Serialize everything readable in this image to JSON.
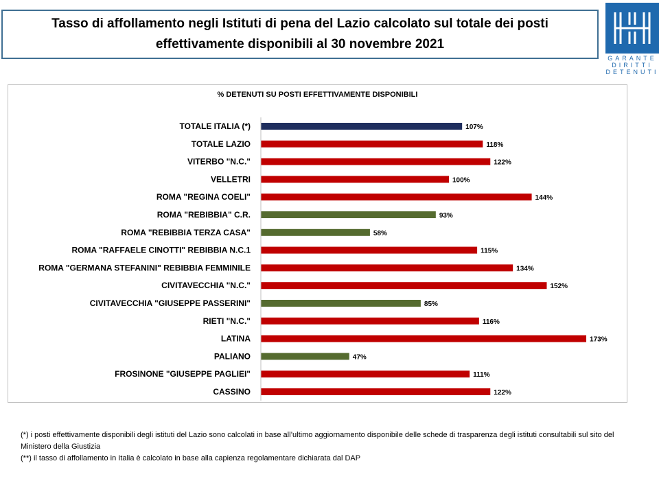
{
  "header": {
    "title": "Tasso di affollamento negli Istituti di pena del Lazio calcolato sul totale dei posti effettivamente disponibili al 30 novembre 2021"
  },
  "logo": {
    "lines": [
      "GARANTE",
      "DIRITTI",
      "DETENUTI"
    ],
    "color": "#1f69ae"
  },
  "chart_data": {
    "type": "bar",
    "orientation": "horizontal",
    "title": "% DETENUTI SU POSTI EFFETTIVAMENTE DISPONIBILI",
    "xlabel": "",
    "ylabel": "",
    "grid": false,
    "legend": "none",
    "xlim": [
      0,
      180
    ],
    "categories": [
      "TOTALE ITALIA (*)",
      "TOTALE LAZIO",
      "VITERBO \"N.C.\"",
      "VELLETRI",
      "ROMA \"REGINA COELI\"",
      "ROMA \"REBIBBIA\" C.R.",
      "ROMA \"REBIBBIA TERZA CASA\"",
      "ROMA \"RAFFAELE CINOTTI\" REBIBBIA N.C.1",
      "ROMA \"GERMANA STEFANINI\" REBIBBIA FEMMINILE",
      "CIVITAVECCHIA \"N.C.\"",
      "CIVITAVECCHIA \"GIUSEPPE PASSERINI\"",
      "RIETI \"N.C.\"",
      "LATINA",
      "PALIANO",
      "FROSINONE \"GIUSEPPE PAGLIEI\"",
      "CASSINO"
    ],
    "values": [
      107,
      118,
      122,
      100,
      144,
      93,
      58,
      115,
      134,
      152,
      85,
      116,
      173,
      47,
      111,
      122
    ],
    "value_labels": [
      "107%",
      "118%",
      "122%",
      "100%",
      "144%",
      "93%",
      "58%",
      "115%",
      "134%",
      "152%",
      "85%",
      "116%",
      "173%",
      "47%",
      "111%",
      "122%"
    ],
    "bar_colors": [
      "#1f2e5e",
      "#c00000",
      "#c00000",
      "#c00000",
      "#c00000",
      "#556b2f",
      "#556b2f",
      "#c00000",
      "#c00000",
      "#c00000",
      "#556b2f",
      "#c00000",
      "#c00000",
      "#556b2f",
      "#c00000",
      "#c00000"
    ]
  },
  "notes": {
    "line1": "(*) i posti effettivamente disponibili  degli istituti del Lazio sono  calcolati in base all’ultimo aggiornamento disponibile  delle schede  di trasparenza degli istituti consultabili  sul sito del Ministero della Giustizia",
    "line2": "(**) il tasso di affollamento  in Italia è calcolato in base alla capienza regolamentare dichiarata dal DAP"
  }
}
